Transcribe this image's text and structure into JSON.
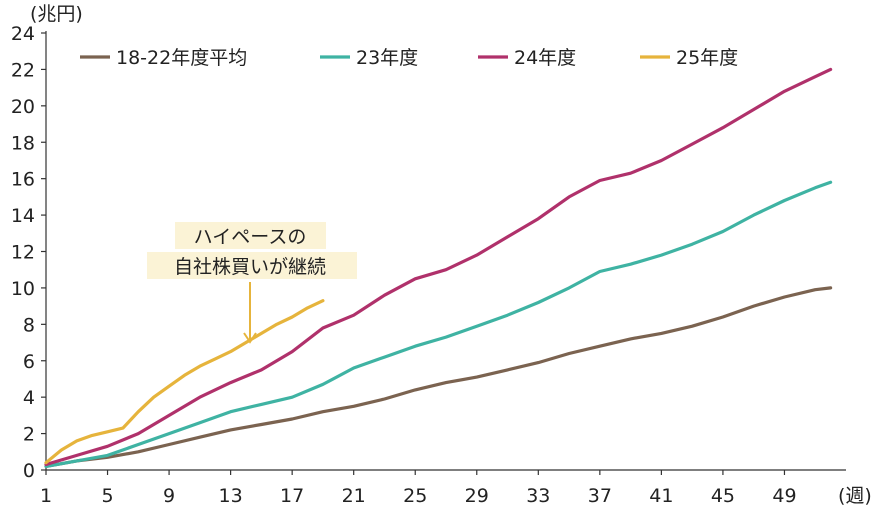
{
  "chart_data": {
    "type": "line",
    "y_unit": "(兆円)",
    "x_unit": "(週)",
    "ylim": [
      0,
      24
    ],
    "yticks": [
      0,
      2,
      4,
      6,
      8,
      10,
      12,
      14,
      16,
      18,
      20,
      22,
      24
    ],
    "xlim": [
      1,
      53
    ],
    "xticks": [
      1,
      5,
      9,
      13,
      17,
      21,
      25,
      29,
      33,
      37,
      41,
      45,
      49
    ],
    "grid": false,
    "legend_position": "top",
    "series": [
      {
        "name": "18-22年度平均",
        "color": "#7b6350",
        "x": [
          1,
          3,
          5,
          7,
          9,
          11,
          13,
          15,
          17,
          19,
          21,
          23,
          25,
          27,
          29,
          31,
          33,
          35,
          37,
          39,
          41,
          43,
          45,
          47,
          49,
          51,
          52
        ],
        "y": [
          0.2,
          0.5,
          0.7,
          1.0,
          1.4,
          1.8,
          2.2,
          2.5,
          2.8,
          3.2,
          3.5,
          3.9,
          4.4,
          4.8,
          5.1,
          5.5,
          5.9,
          6.4,
          6.8,
          7.2,
          7.5,
          7.9,
          8.4,
          9.0,
          9.5,
          9.9,
          10.0
        ]
      },
      {
        "name": "23年度",
        "color": "#3fb3a3",
        "x": [
          1,
          3,
          5,
          7,
          9,
          11,
          13,
          15,
          17,
          19,
          21,
          23,
          25,
          27,
          29,
          31,
          33,
          35,
          37,
          39,
          41,
          43,
          45,
          47,
          49,
          51,
          52
        ],
        "y": [
          0.2,
          0.5,
          0.8,
          1.4,
          2.0,
          2.6,
          3.2,
          3.6,
          4.0,
          4.7,
          5.6,
          6.2,
          6.8,
          7.3,
          7.9,
          8.5,
          9.2,
          10.0,
          10.9,
          11.3,
          11.8,
          12.4,
          13.1,
          14.0,
          14.8,
          15.5,
          15.8
        ]
      },
      {
        "name": "24年度",
        "color": "#b0316b",
        "x": [
          1,
          3,
          5,
          7,
          9,
          11,
          13,
          15,
          17,
          19,
          21,
          23,
          25,
          27,
          29,
          31,
          33,
          35,
          37,
          39,
          41,
          43,
          45,
          47,
          49,
          51,
          52
        ],
        "y": [
          0.3,
          0.8,
          1.3,
          2.0,
          3.0,
          4.0,
          4.8,
          5.5,
          6.5,
          7.8,
          8.5,
          9.6,
          10.5,
          11.0,
          11.8,
          12.8,
          13.8,
          15.0,
          15.9,
          16.3,
          17.0,
          17.9,
          18.8,
          19.8,
          20.8,
          21.6,
          22.0
        ]
      },
      {
        "name": "25年度",
        "color": "#e6b43c",
        "x": [
          1,
          2,
          3,
          4,
          5,
          6,
          7,
          8,
          9,
          10,
          11,
          12,
          13,
          14,
          15,
          16,
          17,
          18,
          19
        ],
        "y": [
          0.4,
          1.1,
          1.6,
          1.9,
          2.1,
          2.3,
          3.2,
          4.0,
          4.6,
          5.2,
          5.7,
          6.1,
          6.5,
          7.0,
          7.5,
          8.0,
          8.4,
          8.9,
          9.3
        ]
      }
    ],
    "annotation": {
      "line1": "ハイペースの",
      "line2": "自社株買いが継続",
      "target_x": 14,
      "target_y": 6.9
    }
  }
}
